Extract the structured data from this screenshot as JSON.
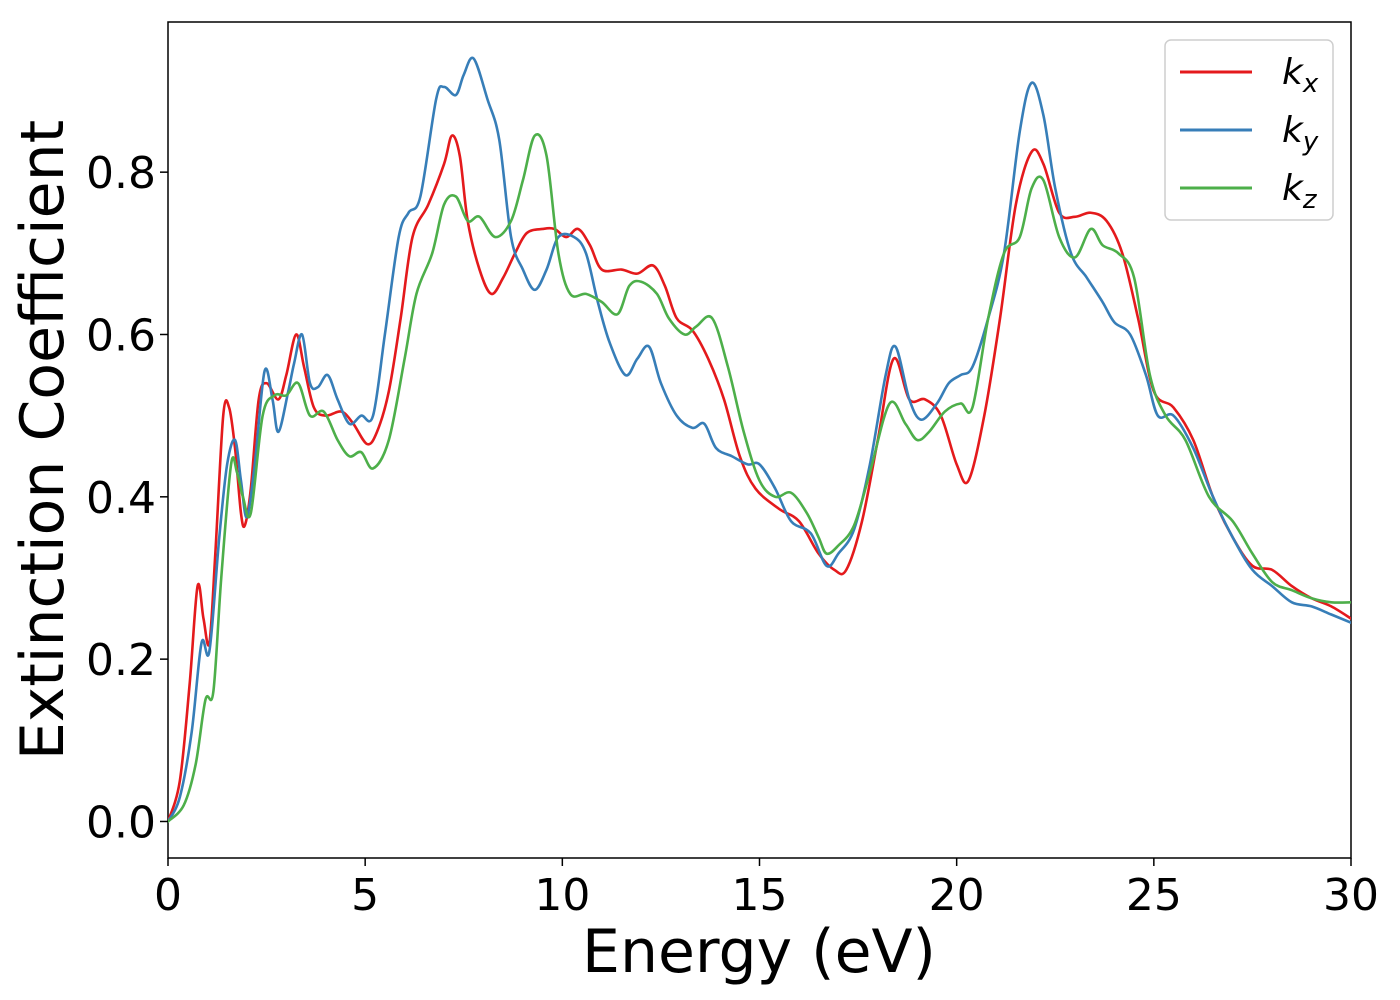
{
  "chart_data": {
    "type": "line",
    "title": "",
    "xlabel": "Energy (eV)",
    "ylabel": "Extinction Coefficient",
    "xlim": [
      0,
      30
    ],
    "ylim": [
      -0.045,
      0.985
    ],
    "xticks": [
      0,
      5,
      10,
      15,
      20,
      25,
      30
    ],
    "yticks": [
      0.0,
      0.2,
      0.4,
      0.6,
      0.8
    ],
    "x_tick_labels": [
      "0",
      "5",
      "10",
      "15",
      "20",
      "25",
      "30"
    ],
    "y_tick_labels": [
      "0.0",
      "0.2",
      "0.4",
      "0.6",
      "0.8"
    ],
    "grid": false,
    "legend_position": "top-right",
    "series": [
      {
        "name": "k",
        "subscript": "x",
        "color": "#e41a1c",
        "points": [
          [
            0,
            0.0
          ],
          [
            0.3,
            0.05
          ],
          [
            0.55,
            0.17
          ],
          [
            0.75,
            0.29
          ],
          [
            0.9,
            0.25
          ],
          [
            1.05,
            0.22
          ],
          [
            1.2,
            0.33
          ],
          [
            1.4,
            0.5
          ],
          [
            1.55,
            0.51
          ],
          [
            1.7,
            0.46
          ],
          [
            1.85,
            0.38
          ],
          [
            1.95,
            0.365
          ],
          [
            2.1,
            0.41
          ],
          [
            2.3,
            0.52
          ],
          [
            2.5,
            0.54
          ],
          [
            2.8,
            0.52
          ],
          [
            3.0,
            0.55
          ],
          [
            3.25,
            0.6
          ],
          [
            3.45,
            0.56
          ],
          [
            3.7,
            0.51
          ],
          [
            4.0,
            0.5
          ],
          [
            4.4,
            0.505
          ],
          [
            4.7,
            0.49
          ],
          [
            5.05,
            0.465
          ],
          [
            5.3,
            0.48
          ],
          [
            5.6,
            0.53
          ],
          [
            5.9,
            0.62
          ],
          [
            6.2,
            0.72
          ],
          [
            6.6,
            0.76
          ],
          [
            7.0,
            0.81
          ],
          [
            7.2,
            0.845
          ],
          [
            7.4,
            0.82
          ],
          [
            7.6,
            0.74
          ],
          [
            7.9,
            0.68
          ],
          [
            8.2,
            0.65
          ],
          [
            8.5,
            0.67
          ],
          [
            8.8,
            0.7
          ],
          [
            9.1,
            0.725
          ],
          [
            9.5,
            0.73
          ],
          [
            9.8,
            0.73
          ],
          [
            10.1,
            0.72
          ],
          [
            10.4,
            0.73
          ],
          [
            10.7,
            0.71
          ],
          [
            11.0,
            0.68
          ],
          [
            11.5,
            0.68
          ],
          [
            11.9,
            0.675
          ],
          [
            12.3,
            0.685
          ],
          [
            12.6,
            0.66
          ],
          [
            12.9,
            0.62
          ],
          [
            13.3,
            0.605
          ],
          [
            13.7,
            0.57
          ],
          [
            14.1,
            0.52
          ],
          [
            14.5,
            0.45
          ],
          [
            14.9,
            0.41
          ],
          [
            15.5,
            0.385
          ],
          [
            16.0,
            0.37
          ],
          [
            16.5,
            0.33
          ],
          [
            16.9,
            0.31
          ],
          [
            17.2,
            0.31
          ],
          [
            17.6,
            0.37
          ],
          [
            18.0,
            0.47
          ],
          [
            18.4,
            0.57
          ],
          [
            18.8,
            0.52
          ],
          [
            19.2,
            0.52
          ],
          [
            19.6,
            0.5
          ],
          [
            20.0,
            0.44
          ],
          [
            20.3,
            0.42
          ],
          [
            20.7,
            0.5
          ],
          [
            21.1,
            0.62
          ],
          [
            21.5,
            0.76
          ],
          [
            21.9,
            0.825
          ],
          [
            22.2,
            0.81
          ],
          [
            22.6,
            0.75
          ],
          [
            23.0,
            0.745
          ],
          [
            23.4,
            0.75
          ],
          [
            23.8,
            0.74
          ],
          [
            24.2,
            0.7
          ],
          [
            24.6,
            0.62
          ],
          [
            25.0,
            0.53
          ],
          [
            25.5,
            0.51
          ],
          [
            26.0,
            0.47
          ],
          [
            26.5,
            0.4
          ],
          [
            27.0,
            0.35
          ],
          [
            27.5,
            0.315
          ],
          [
            28.0,
            0.31
          ],
          [
            28.5,
            0.29
          ],
          [
            29.0,
            0.275
          ],
          [
            29.5,
            0.265
          ],
          [
            30.0,
            0.25
          ]
        ]
      },
      {
        "name": "k",
        "subscript": "y",
        "color": "#377eb8",
        "points": [
          [
            0,
            0.0
          ],
          [
            0.3,
            0.03
          ],
          [
            0.6,
            0.11
          ],
          [
            0.85,
            0.22
          ],
          [
            1.05,
            0.21
          ],
          [
            1.3,
            0.35
          ],
          [
            1.5,
            0.44
          ],
          [
            1.7,
            0.47
          ],
          [
            1.85,
            0.42
          ],
          [
            2.0,
            0.375
          ],
          [
            2.2,
            0.44
          ],
          [
            2.45,
            0.555
          ],
          [
            2.65,
            0.52
          ],
          [
            2.8,
            0.48
          ],
          [
            3.05,
            0.53
          ],
          [
            3.2,
            0.565
          ],
          [
            3.4,
            0.6
          ],
          [
            3.6,
            0.54
          ],
          [
            3.8,
            0.535
          ],
          [
            4.05,
            0.55
          ],
          [
            4.3,
            0.52
          ],
          [
            4.6,
            0.49
          ],
          [
            4.9,
            0.5
          ],
          [
            5.2,
            0.5
          ],
          [
            5.5,
            0.6
          ],
          [
            5.85,
            0.72
          ],
          [
            6.1,
            0.75
          ],
          [
            6.4,
            0.77
          ],
          [
            6.8,
            0.89
          ],
          [
            7.0,
            0.905
          ],
          [
            7.3,
            0.895
          ],
          [
            7.5,
            0.92
          ],
          [
            7.75,
            0.94
          ],
          [
            8.1,
            0.89
          ],
          [
            8.4,
            0.84
          ],
          [
            8.7,
            0.72
          ],
          [
            9.0,
            0.68
          ],
          [
            9.3,
            0.655
          ],
          [
            9.6,
            0.68
          ],
          [
            9.9,
            0.72
          ],
          [
            10.3,
            0.72
          ],
          [
            10.6,
            0.7
          ],
          [
            10.9,
            0.64
          ],
          [
            11.2,
            0.59
          ],
          [
            11.6,
            0.55
          ],
          [
            11.9,
            0.57
          ],
          [
            12.2,
            0.585
          ],
          [
            12.5,
            0.54
          ],
          [
            12.9,
            0.5
          ],
          [
            13.3,
            0.485
          ],
          [
            13.6,
            0.49
          ],
          [
            13.9,
            0.46
          ],
          [
            14.3,
            0.45
          ],
          [
            14.7,
            0.44
          ],
          [
            15.0,
            0.44
          ],
          [
            15.4,
            0.41
          ],
          [
            15.8,
            0.37
          ],
          [
            16.3,
            0.355
          ],
          [
            16.7,
            0.315
          ],
          [
            17.0,
            0.33
          ],
          [
            17.4,
            0.36
          ],
          [
            17.8,
            0.44
          ],
          [
            18.2,
            0.55
          ],
          [
            18.45,
            0.585
          ],
          [
            18.8,
            0.52
          ],
          [
            19.1,
            0.495
          ],
          [
            19.5,
            0.515
          ],
          [
            19.8,
            0.54
          ],
          [
            20.1,
            0.55
          ],
          [
            20.4,
            0.56
          ],
          [
            20.8,
            0.62
          ],
          [
            21.2,
            0.7
          ],
          [
            21.6,
            0.85
          ],
          [
            21.9,
            0.91
          ],
          [
            22.2,
            0.87
          ],
          [
            22.5,
            0.78
          ],
          [
            22.9,
            0.7
          ],
          [
            23.3,
            0.67
          ],
          [
            23.7,
            0.64
          ],
          [
            24.0,
            0.615
          ],
          [
            24.4,
            0.6
          ],
          [
            24.8,
            0.55
          ],
          [
            25.1,
            0.5
          ],
          [
            25.5,
            0.5
          ],
          [
            26.0,
            0.46
          ],
          [
            26.5,
            0.4
          ],
          [
            27.0,
            0.35
          ],
          [
            27.5,
            0.31
          ],
          [
            28.0,
            0.29
          ],
          [
            28.5,
            0.27
          ],
          [
            29.0,
            0.265
          ],
          [
            29.5,
            0.255
          ],
          [
            30.0,
            0.245
          ]
        ]
      },
      {
        "name": "k",
        "subscript": "z",
        "color": "#4daf4a",
        "points": [
          [
            0,
            0.0
          ],
          [
            0.4,
            0.02
          ],
          [
            0.7,
            0.07
          ],
          [
            0.95,
            0.15
          ],
          [
            1.15,
            0.16
          ],
          [
            1.35,
            0.3
          ],
          [
            1.6,
            0.44
          ],
          [
            1.75,
            0.43
          ],
          [
            1.9,
            0.4
          ],
          [
            2.1,
            0.38
          ],
          [
            2.4,
            0.5
          ],
          [
            2.7,
            0.525
          ],
          [
            3.0,
            0.525
          ],
          [
            3.3,
            0.54
          ],
          [
            3.6,
            0.5
          ],
          [
            3.95,
            0.505
          ],
          [
            4.3,
            0.47
          ],
          [
            4.6,
            0.45
          ],
          [
            4.9,
            0.455
          ],
          [
            5.2,
            0.435
          ],
          [
            5.6,
            0.47
          ],
          [
            6.0,
            0.57
          ],
          [
            6.3,
            0.65
          ],
          [
            6.7,
            0.7
          ],
          [
            7.0,
            0.76
          ],
          [
            7.3,
            0.77
          ],
          [
            7.6,
            0.74
          ],
          [
            7.9,
            0.745
          ],
          [
            8.3,
            0.72
          ],
          [
            8.7,
            0.74
          ],
          [
            9.0,
            0.79
          ],
          [
            9.3,
            0.845
          ],
          [
            9.6,
            0.82
          ],
          [
            9.9,
            0.7
          ],
          [
            10.2,
            0.65
          ],
          [
            10.6,
            0.65
          ],
          [
            11.0,
            0.64
          ],
          [
            11.4,
            0.625
          ],
          [
            11.7,
            0.66
          ],
          [
            12.0,
            0.665
          ],
          [
            12.4,
            0.65
          ],
          [
            12.7,
            0.62
          ],
          [
            13.1,
            0.6
          ],
          [
            13.4,
            0.61
          ],
          [
            13.8,
            0.62
          ],
          [
            14.2,
            0.56
          ],
          [
            14.6,
            0.48
          ],
          [
            15.0,
            0.42
          ],
          [
            15.4,
            0.4
          ],
          [
            15.8,
            0.405
          ],
          [
            16.2,
            0.38
          ],
          [
            16.5,
            0.35
          ],
          [
            16.7,
            0.33
          ],
          [
            17.0,
            0.34
          ],
          [
            17.4,
            0.365
          ],
          [
            17.8,
            0.43
          ],
          [
            18.3,
            0.515
          ],
          [
            18.7,
            0.49
          ],
          [
            19.0,
            0.47
          ],
          [
            19.3,
            0.48
          ],
          [
            19.7,
            0.505
          ],
          [
            20.1,
            0.515
          ],
          [
            20.4,
            0.51
          ],
          [
            20.8,
            0.62
          ],
          [
            21.2,
            0.7
          ],
          [
            21.6,
            0.72
          ],
          [
            21.9,
            0.78
          ],
          [
            22.2,
            0.79
          ],
          [
            22.6,
            0.72
          ],
          [
            23.0,
            0.695
          ],
          [
            23.4,
            0.73
          ],
          [
            23.7,
            0.71
          ],
          [
            24.1,
            0.7
          ],
          [
            24.5,
            0.67
          ],
          [
            24.9,
            0.55
          ],
          [
            25.3,
            0.5
          ],
          [
            25.8,
            0.47
          ],
          [
            26.4,
            0.4
          ],
          [
            27.0,
            0.37
          ],
          [
            27.5,
            0.33
          ],
          [
            28.0,
            0.295
          ],
          [
            28.5,
            0.285
          ],
          [
            29.0,
            0.275
          ],
          [
            29.5,
            0.27
          ],
          [
            30.0,
            0.27
          ]
        ]
      }
    ]
  }
}
